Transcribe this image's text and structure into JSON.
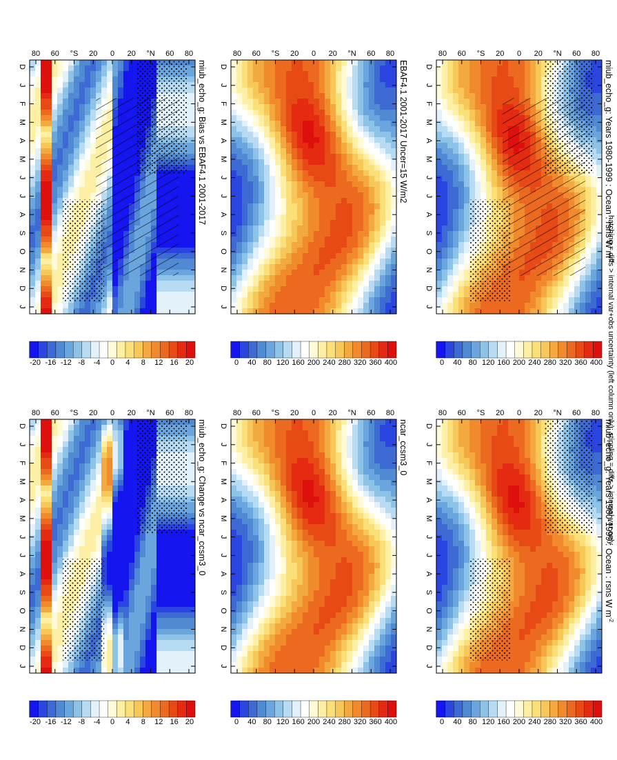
{
  "figure": {
    "footnote": "hatching = diffs > internal var+obs uncertainty (left column only); stippling = diffs > internal var only"
  },
  "colorbars": {
    "absolute": {
      "labels": [
        "0",
        "40",
        "80",
        "120",
        "160",
        "200",
        "240",
        "280",
        "320",
        "360",
        "400"
      ],
      "colors": [
        "#1515f0",
        "#2b45e0",
        "#3d6ad3",
        "#4f8ad2",
        "#6aa6dd",
        "#8ec3e8",
        "#b7dbf2",
        "#e2f1fa",
        "#ffffff",
        "#fffbd9",
        "#fdf0a4",
        "#fbe07a",
        "#f7c75a",
        "#f4a840",
        "#f08a2d",
        "#ec6a20",
        "#e84a16",
        "#e42a10",
        "#dd100d"
      ]
    },
    "difference": {
      "labels": [
        "-20",
        "-16",
        "-12",
        "-8",
        "-4",
        "0",
        "4",
        "8",
        "12",
        "16",
        "20"
      ],
      "colors": [
        "#1515f0",
        "#2b45e0",
        "#3d6ad3",
        "#4f8ad2",
        "#6aa6dd",
        "#8ec3e8",
        "#b7dbf2",
        "#e2f1fa",
        "#ffffff",
        "#fffbd9",
        "#fdf0a4",
        "#fbe07a",
        "#f7c75a",
        "#f4a840",
        "#f08a2d",
        "#ec6a20",
        "#e84a16",
        "#e42a10",
        "#dd100d"
      ]
    }
  },
  "chart_data": [
    {
      "id": "p1",
      "type": "heatmap",
      "title": "miub_echo_g: Years 1980-1999 : Ocean : rsns W m",
      "title_sup": "-2",
      "x_ticks": [
        "D",
        "J",
        "F",
        "M",
        "A",
        "M",
        "J",
        "J",
        "A",
        "S",
        "O",
        "N",
        "D",
        "J"
      ],
      "y_ticks": [
        "80",
        "60",
        "°N",
        "20",
        "0",
        "20",
        "°S",
        "60",
        "80"
      ],
      "colorbar": "absolute",
      "hatching": true,
      "stippling": true
    },
    {
      "id": "p2",
      "type": "heatmap",
      "title": "miub_echo_g: Years 1980-1999 : Ocean : rsns W m",
      "title_sup": "-2",
      "x_ticks": [
        "D",
        "J",
        "F",
        "M",
        "A",
        "M",
        "J",
        "J",
        "A",
        "S",
        "O",
        "N",
        "D",
        "J"
      ],
      "y_ticks": [
        "80",
        "60",
        "°N",
        "20",
        "0",
        "20",
        "°S",
        "60",
        "80"
      ],
      "colorbar": "absolute",
      "hatching": false,
      "stippling": true
    },
    {
      "id": "p3",
      "type": "heatmap",
      "title": "EBAF4.1 2001-2017 Uncer=15 W/m2",
      "title_sup": "",
      "x_ticks": [
        "D",
        "J",
        "F",
        "M",
        "A",
        "M",
        "J",
        "J",
        "A",
        "S",
        "O",
        "N",
        "D",
        "J"
      ],
      "y_ticks": [
        "80",
        "60",
        "°N",
        "20",
        "0",
        "20",
        "°S",
        "60",
        "80"
      ],
      "colorbar": "absolute",
      "hatching": false,
      "stippling": false
    },
    {
      "id": "p4",
      "type": "heatmap",
      "title": "ncar_ccsm3_0",
      "title_sup": "",
      "x_ticks": [
        "D",
        "J",
        "F",
        "M",
        "A",
        "M",
        "J",
        "J",
        "A",
        "S",
        "O",
        "N",
        "D",
        "J"
      ],
      "y_ticks": [
        "80",
        "60",
        "°N",
        "20",
        "0",
        "20",
        "°S",
        "60",
        "80"
      ],
      "colorbar": "absolute",
      "hatching": false,
      "stippling": false
    },
    {
      "id": "p5",
      "type": "heatmap",
      "title": "miub_echo_g: Bias vs EBAF4.1 2001-2017",
      "title_sup": "",
      "x_ticks": [
        "D",
        "J",
        "F",
        "M",
        "A",
        "M",
        "J",
        "J",
        "A",
        "S",
        "O",
        "N",
        "D",
        "J"
      ],
      "y_ticks": [
        "80",
        "60",
        "°N",
        "20",
        "0",
        "20",
        "°S",
        "60",
        "80"
      ],
      "colorbar": "difference",
      "hatching": true,
      "stippling": true
    },
    {
      "id": "p6",
      "type": "heatmap",
      "title": "miub_echo_g: Change vs ncar_ccsm3_0",
      "title_sup": "",
      "x_ticks": [
        "D",
        "J",
        "F",
        "M",
        "A",
        "M",
        "J",
        "J",
        "A",
        "S",
        "O",
        "N",
        "D",
        "J"
      ],
      "y_ticks": [
        "80",
        "60",
        "°N",
        "20",
        "0",
        "20",
        "°S",
        "60",
        "80"
      ],
      "colorbar": "difference",
      "hatching": false,
      "stippling": true
    }
  ]
}
